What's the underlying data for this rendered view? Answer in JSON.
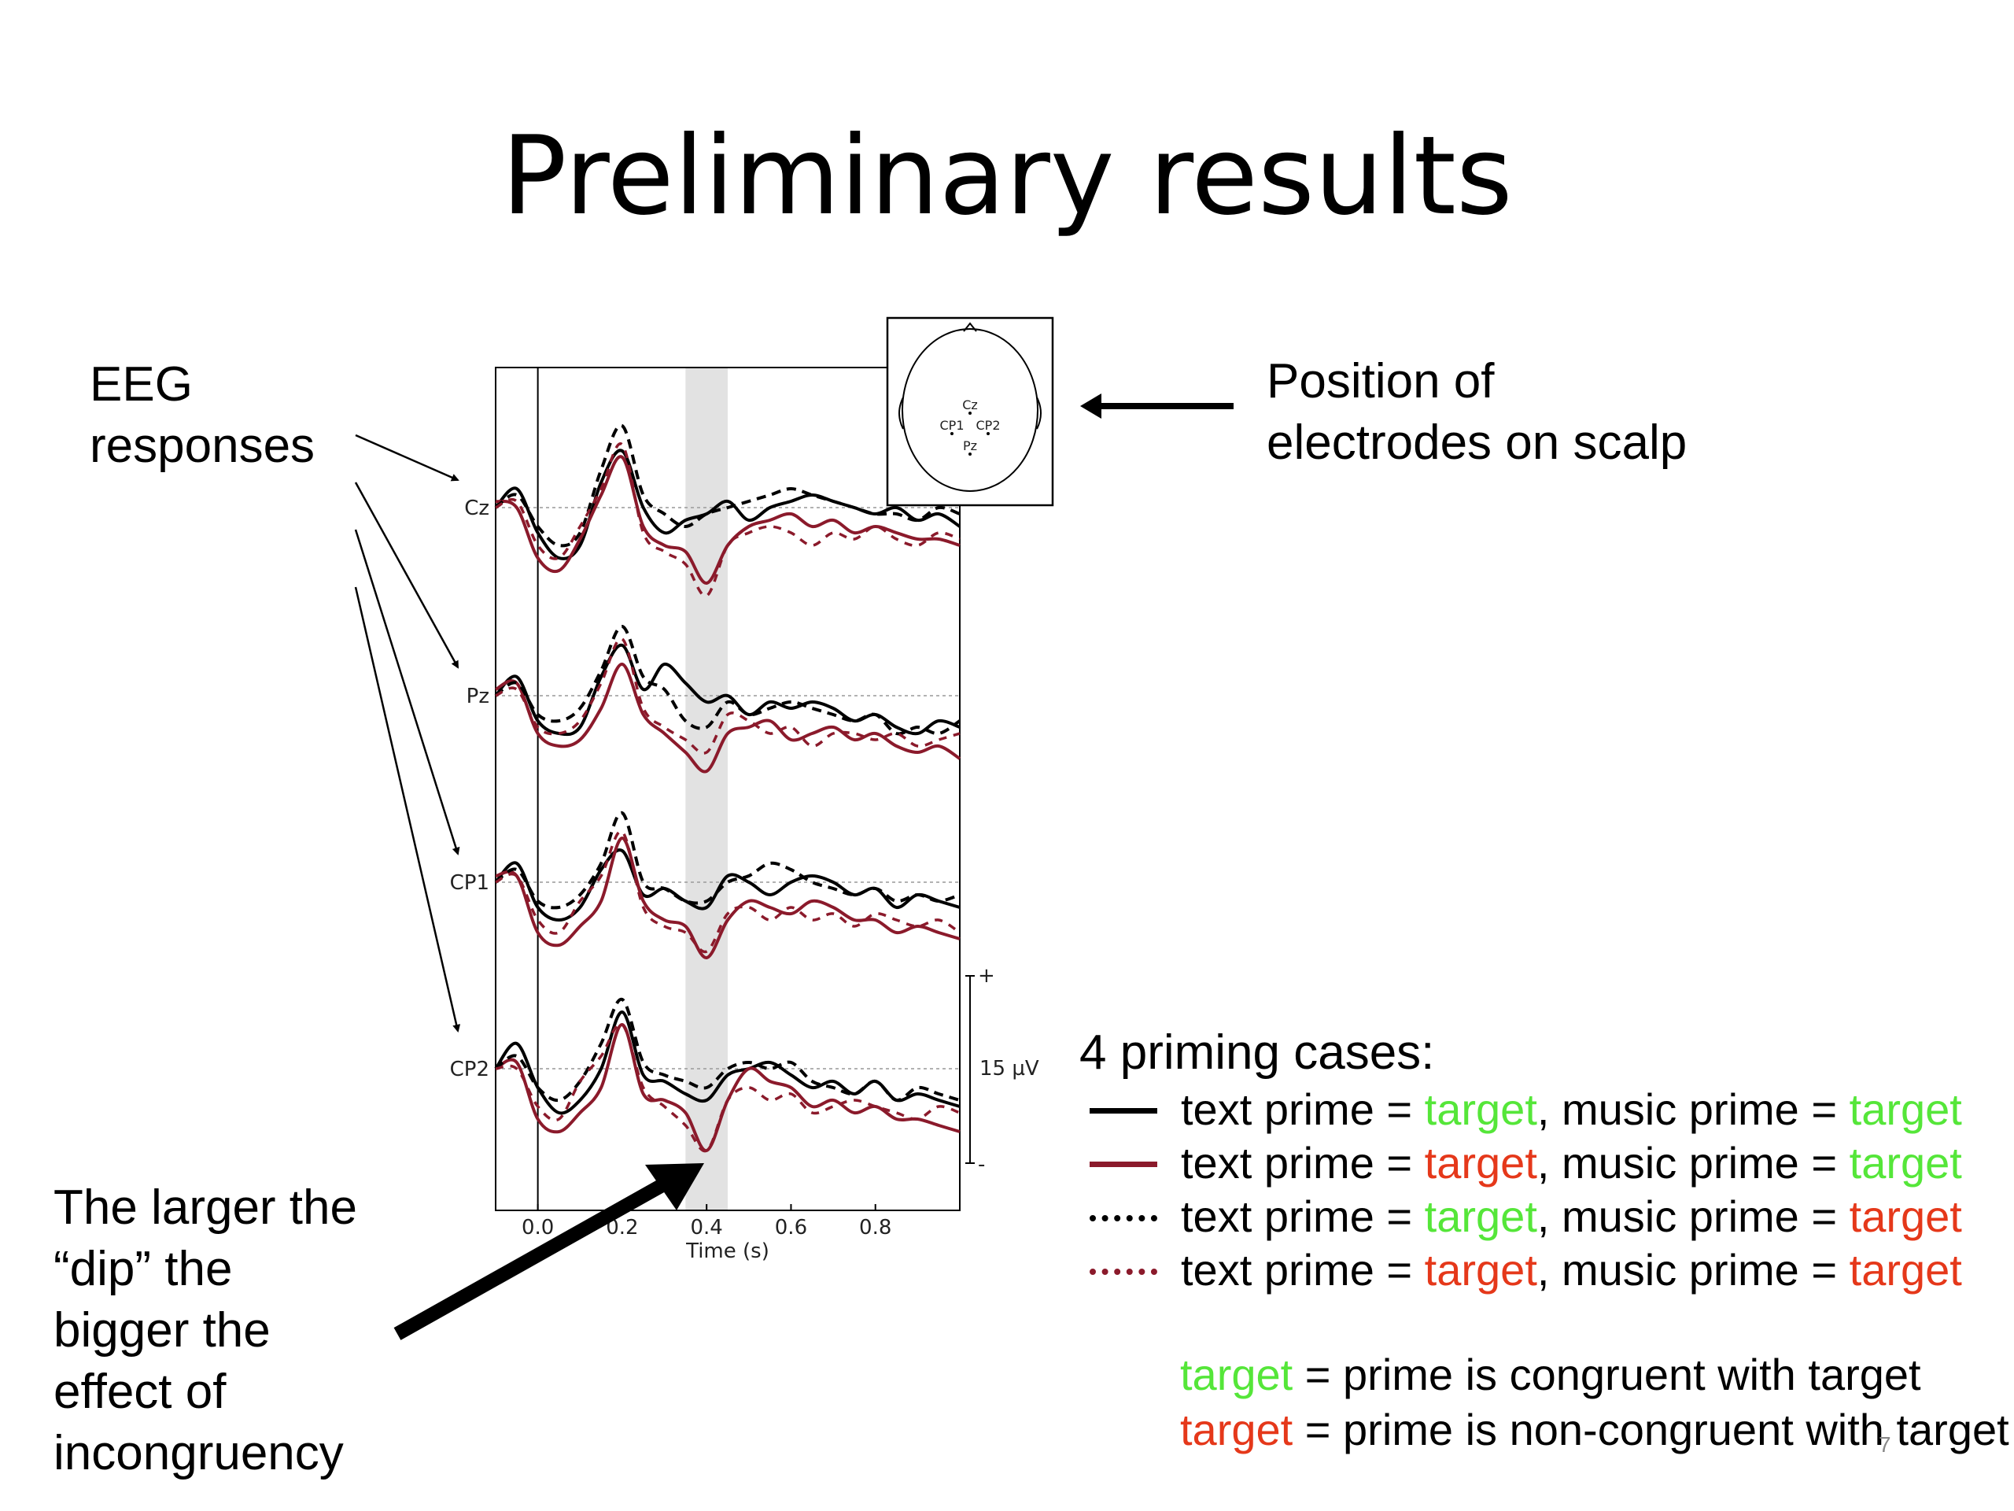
{
  "slide": {
    "title": "Preliminary results",
    "page_number": "7"
  },
  "annotations": {
    "eeg_line1": "EEG",
    "eeg_line2": "responses",
    "pos_line1": "Position of",
    "pos_line2": "electrodes on scalp",
    "dip_lines": [
      "The larger the",
      "“dip” the",
      "bigger the",
      "effect of",
      "incongruency"
    ]
  },
  "legend": {
    "heading": "4 priming cases:",
    "eq": " = ",
    "comma": ", ",
    "text_prime": "text prime",
    "music_prime": "music prime",
    "word": "target",
    "rows": [
      {
        "line": "solid",
        "color": "#000000",
        "text_congruent": true,
        "music_congruent": true
      },
      {
        "line": "solid",
        "color": "#8b1a2b",
        "text_congruent": false,
        "music_congruent": true
      },
      {
        "line": "dotted",
        "color": "#000000",
        "text_congruent": true,
        "music_congruent": false
      },
      {
        "line": "dotted",
        "color": "#8b1a2b",
        "text_congruent": false,
        "music_congruent": false
      }
    ],
    "congruent_def": " = prime is congruent with target",
    "noncongruent_def": " = prime is non-congruent with target",
    "congruent_color": "#55e639",
    "noncongruent_color": "#e5381a"
  },
  "chart_data": {
    "type": "line",
    "xlabel": "Time (s)",
    "xticks": [
      0.0,
      0.2,
      0.4,
      0.6,
      0.8
    ],
    "xtick_labels": [
      "0.0",
      "0.2",
      "0.4",
      "0.6",
      "0.8"
    ],
    "xlim": [
      -0.1,
      1.0
    ],
    "highlight_window": [
      0.35,
      0.45
    ],
    "scale_bar": {
      "label": "15 µV",
      "plus": "+",
      "minus": "-",
      "microvolts": 15
    },
    "channels": [
      "Cz",
      "Pz",
      "CP1",
      "CP2"
    ],
    "head_map_labels": [
      "Cz",
      "CP1",
      "CP2",
      "Pz"
    ],
    "series": [
      {
        "name": "text prime = target, music prime = target",
        "style": "solid",
        "color": "#000000"
      },
      {
        "name": "text prime = target, music prime = target",
        "style": "solid",
        "color": "#8b1a2b"
      },
      {
        "name": "text prime = target, music prime = target",
        "style": "dashed",
        "color": "#000000"
      },
      {
        "name": "text prime = target, music prime = target",
        "style": "dashed",
        "color": "#8b1a2b"
      }
    ],
    "x": [
      -0.1,
      -0.05,
      0.0,
      0.05,
      0.1,
      0.15,
      0.2,
      0.25,
      0.3,
      0.35,
      0.4,
      0.45,
      0.5,
      0.55,
      0.6,
      0.65,
      0.7,
      0.75,
      0.8,
      0.85,
      0.9,
      0.95,
      1.0
    ],
    "waveforms": {
      "Cz": {
        "solid_black": [
          0,
          3,
          -4,
          -8,
          -6,
          4,
          9,
          0,
          -4,
          -2,
          -1,
          1,
          -2,
          0,
          1,
          2,
          1,
          0,
          -1,
          0,
          -2,
          -1,
          -3
        ],
        "solid_red": [
          1,
          0,
          -8,
          -10,
          -5,
          2,
          8,
          -3,
          -6,
          -7,
          -12,
          -6,
          -3,
          -2,
          -1,
          -3,
          -2,
          -4,
          -3,
          -4,
          -5,
          -5,
          -6
        ],
        "dashed_black": [
          0,
          2,
          -3,
          -6,
          -4,
          6,
          13,
          2,
          -1,
          -3,
          -1,
          0,
          1,
          2,
          3,
          2,
          1,
          0,
          -1,
          -1,
          -2,
          0,
          -1
        ],
        "dashed_red": [
          0,
          1,
          -6,
          -8,
          -3,
          3,
          10,
          -4,
          -7,
          -9,
          -14,
          -6,
          -4,
          -3,
          -4,
          -6,
          -4,
          -5,
          -3,
          -5,
          -6,
          -4,
          -5
        ]
      },
      "Pz": {
        "solid_black": [
          0,
          3,
          -4,
          -6,
          -5,
          3,
          8,
          1,
          5,
          2,
          -1,
          0,
          -3,
          -1,
          -2,
          -1,
          -2,
          -4,
          -3,
          -5,
          -6,
          -4,
          -5
        ],
        "solid_red": [
          1,
          2,
          -6,
          -8,
          -7,
          -2,
          5,
          -3,
          -6,
          -9,
          -12,
          -6,
          -5,
          -4,
          -7,
          -6,
          -5,
          -7,
          -6,
          -8,
          -9,
          -8,
          -10
        ],
        "dashed_black": [
          0,
          2,
          -3,
          -4,
          -2,
          4,
          11,
          3,
          1,
          -4,
          -5,
          -1,
          -3,
          -2,
          -1,
          -2,
          -3,
          -4,
          -3,
          -6,
          -5,
          -6,
          -4
        ],
        "dashed_red": [
          0,
          1,
          -5,
          -6,
          -4,
          2,
          9,
          -2,
          -5,
          -7,
          -9,
          -3,
          -4,
          -6,
          -5,
          -8,
          -6,
          -6,
          -7,
          -6,
          -8,
          -7,
          -6
        ]
      },
      "CP1": {
        "solid_black": [
          0,
          3,
          -4,
          -6,
          -4,
          2,
          5,
          -2,
          -1,
          -3,
          -4,
          1,
          0,
          -2,
          0,
          1,
          0,
          -2,
          -1,
          -4,
          -2,
          -3,
          -4
        ],
        "solid_red": [
          1,
          1,
          -8,
          -10,
          -7,
          -3,
          7,
          -3,
          -6,
          -7,
          -12,
          -6,
          -3,
          -4,
          -5,
          -3,
          -4,
          -6,
          -6,
          -8,
          -7,
          -8,
          -9
        ],
        "dashed_black": [
          0,
          2,
          -3,
          -4,
          -2,
          3,
          11,
          0,
          -1,
          -3,
          -3,
          0,
          1,
          3,
          2,
          0,
          -1,
          -2,
          -1,
          -3,
          -2,
          -3,
          -2
        ],
        "dashed_red": [
          0,
          1,
          -6,
          -8,
          -3,
          1,
          8,
          -4,
          -7,
          -8,
          -11,
          -5,
          -4,
          -6,
          -4,
          -6,
          -5,
          -7,
          -5,
          -6,
          -7,
          -6,
          -8
        ]
      },
      "CP2": {
        "solid_black": [
          0,
          4,
          -3,
          -7,
          -5,
          0,
          9,
          -1,
          -2,
          -4,
          -5,
          -1,
          0,
          1,
          -1,
          -3,
          -2,
          -4,
          -2,
          -5,
          -4,
          -5,
          -6
        ],
        "solid_red": [
          0,
          1,
          -8,
          -10,
          -7,
          -3,
          7,
          -4,
          -5,
          -7,
          -13,
          -5,
          0,
          -2,
          -3,
          -6,
          -5,
          -7,
          -6,
          -8,
          -8,
          -9,
          -10
        ],
        "dashed_black": [
          0,
          2,
          -3,
          -5,
          -2,
          4,
          11,
          1,
          -1,
          -2,
          -3,
          0,
          1,
          0,
          1,
          -2,
          -3,
          -4,
          -2,
          -5,
          -3,
          -4,
          -5
        ],
        "dashed_red": [
          0,
          0,
          -6,
          -8,
          -2,
          2,
          7,
          -3,
          -6,
          -9,
          -13,
          -5,
          -3,
          -5,
          -4,
          -7,
          -6,
          -5,
          -6,
          -7,
          -8,
          -6,
          -7
        ]
      }
    }
  }
}
